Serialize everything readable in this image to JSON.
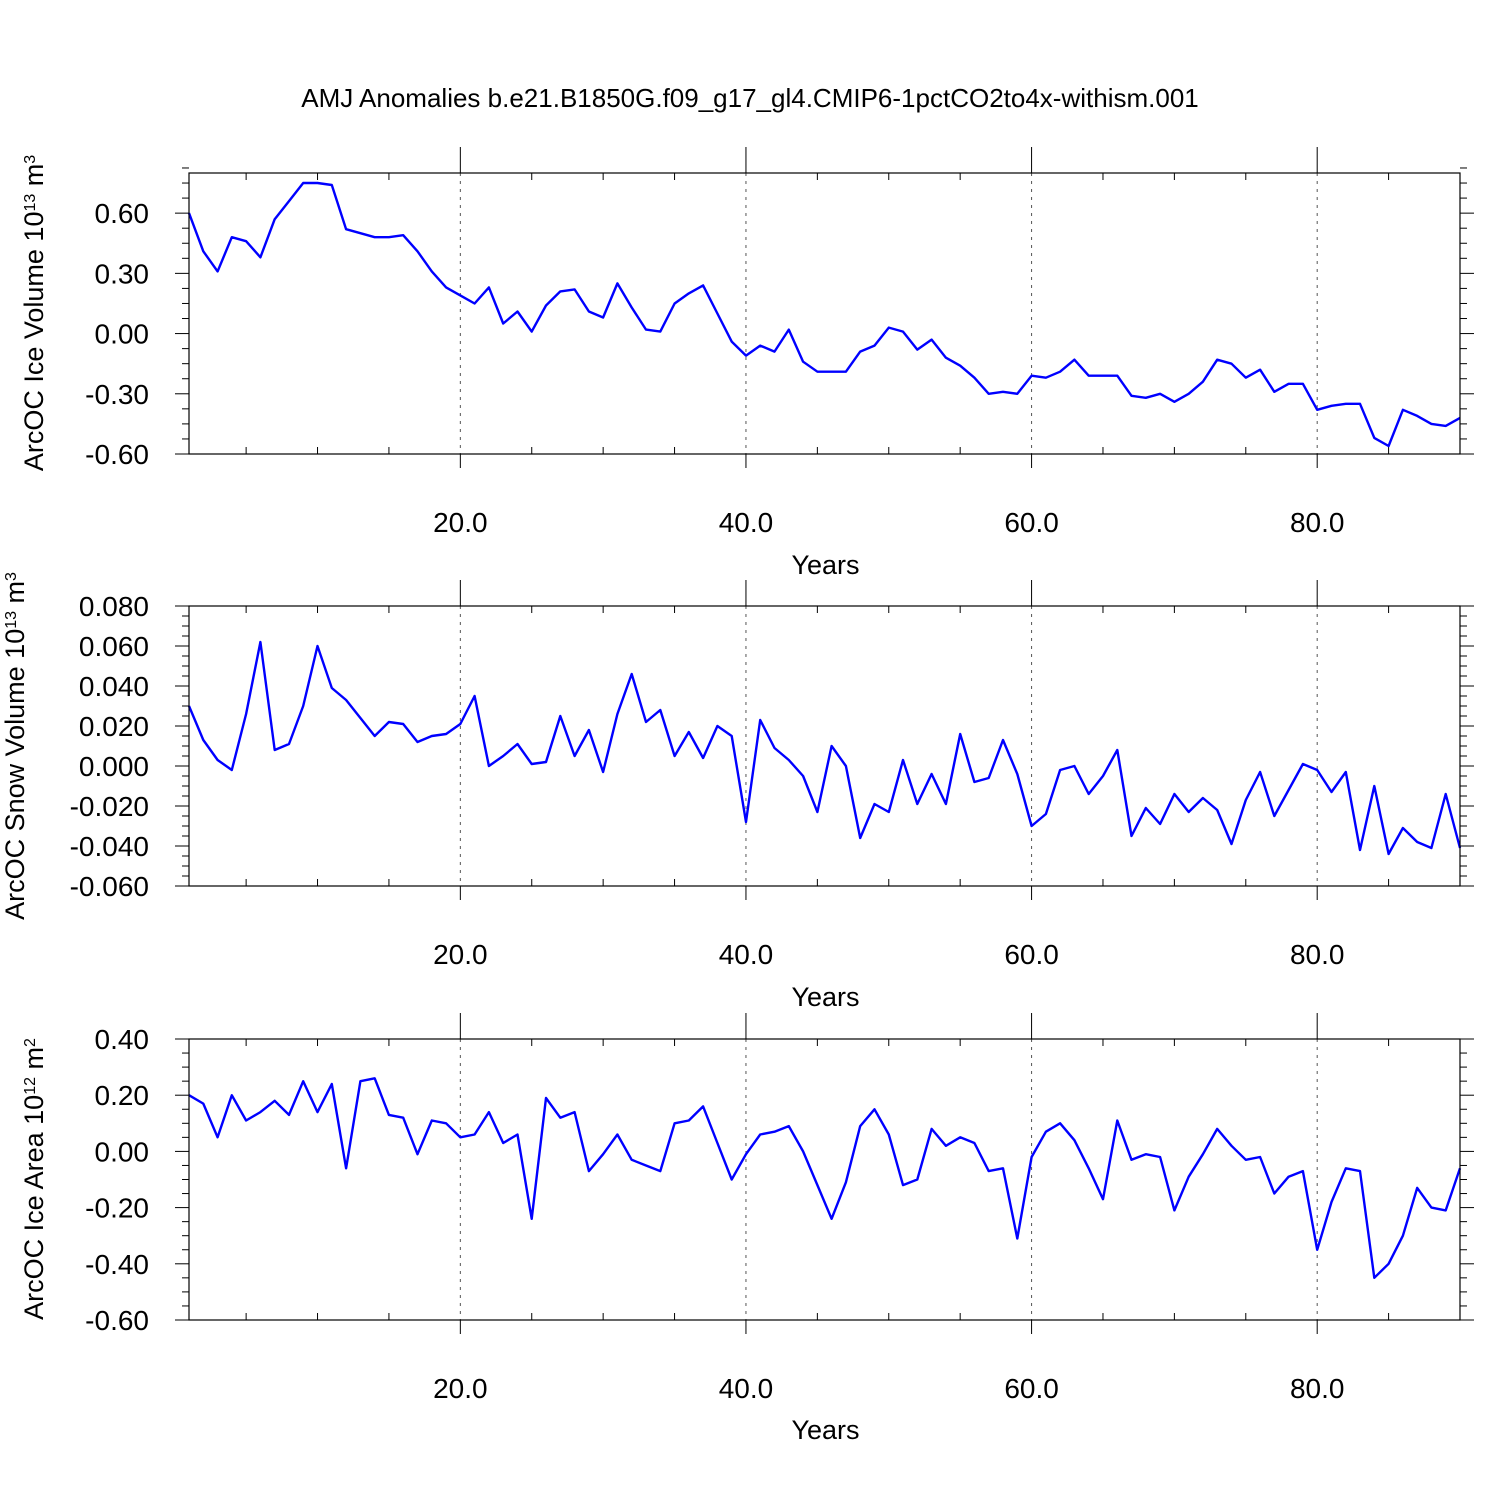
{
  "title": "AMJ Anomalies b.e21.B1850G.f09_g17_gl4.CMIP6-1pctCO2to4x-withism.001",
  "colors": {
    "line": "#0000ff",
    "axis": "#000000",
    "grid": "#555555"
  },
  "chart_data": [
    {
      "type": "line",
      "xlabel": "Years",
      "ylabel": {
        "prefix": "ArcOC Ice Volume 10",
        "exp": "13",
        "unit": " m",
        "unit_exp": "3"
      },
      "xlim": [
        1,
        90
      ],
      "ylim": [
        -0.6,
        0.8
      ],
      "xticks": [
        20,
        40,
        60,
        80
      ],
      "xtick_labels": [
        "20.0",
        "40.0",
        "60.0",
        "80.0"
      ],
      "yticks": [
        -0.6,
        -0.3,
        0.0,
        0.3,
        0.6
      ],
      "ytick_labels": [
        "-0.60",
        "-0.30",
        "0.00",
        "0.30",
        "0.60"
      ],
      "yminor_step": 0.075,
      "grid": "vertical dashed at major x ticks",
      "x": [
        1,
        2,
        3,
        4,
        5,
        6,
        7,
        8,
        9,
        10,
        11,
        12,
        13,
        14,
        15,
        16,
        17,
        18,
        19,
        20,
        21,
        22,
        23,
        24,
        25,
        26,
        27,
        28,
        29,
        30,
        31,
        32,
        33,
        34,
        35,
        36,
        37,
        38,
        39,
        40,
        41,
        42,
        43,
        44,
        45,
        46,
        47,
        48,
        49,
        50,
        51,
        52,
        53,
        54,
        55,
        56,
        57,
        58,
        59,
        60,
        61,
        62,
        63,
        64,
        65,
        66,
        67,
        68,
        69,
        70,
        71,
        72,
        73,
        74,
        75,
        76,
        77,
        78,
        79,
        80,
        81,
        82,
        83,
        84,
        85,
        86,
        87,
        88,
        89,
        90
      ],
      "values": [
        0.6,
        0.41,
        0.31,
        0.48,
        0.46,
        0.38,
        0.57,
        0.66,
        0.75,
        0.75,
        0.74,
        0.52,
        0.5,
        0.48,
        0.48,
        0.49,
        0.41,
        0.31,
        0.23,
        0.19,
        0.15,
        0.23,
        0.05,
        0.11,
        0.01,
        0.14,
        0.21,
        0.22,
        0.11,
        0.08,
        0.25,
        0.13,
        0.02,
        0.01,
        0.15,
        0.2,
        0.24,
        0.1,
        -0.04,
        -0.11,
        -0.06,
        -0.09,
        0.02,
        -0.14,
        -0.19,
        -0.19,
        -0.19,
        -0.09,
        -0.06,
        0.03,
        0.01,
        -0.08,
        -0.03,
        -0.12,
        -0.16,
        -0.22,
        -0.3,
        -0.29,
        -0.3,
        -0.21,
        -0.22,
        -0.19,
        -0.13,
        -0.21,
        -0.21,
        -0.21,
        -0.31,
        -0.32,
        -0.3,
        -0.34,
        -0.3,
        -0.24,
        -0.13,
        -0.15,
        -0.22,
        -0.18,
        -0.29,
        -0.25,
        -0.25,
        -0.38,
        -0.36,
        -0.35,
        -0.35,
        -0.52,
        -0.56,
        -0.38,
        -0.41,
        -0.45,
        -0.46,
        -0.42
      ]
    },
    {
      "type": "line",
      "xlabel": "Years",
      "ylabel": {
        "prefix": "ArcOC Snow Volume 10",
        "exp": "13",
        "unit": " m",
        "unit_exp": "3"
      },
      "xlim": [
        1,
        90
      ],
      "ylim": [
        -0.06,
        0.08
      ],
      "xticks": [
        20,
        40,
        60,
        80
      ],
      "xtick_labels": [
        "20.0",
        "40.0",
        "60.0",
        "80.0"
      ],
      "yticks": [
        -0.06,
        -0.04,
        -0.02,
        0.0,
        0.02,
        0.04,
        0.06,
        0.08
      ],
      "ytick_labels": [
        "-0.060",
        "-0.040",
        "-0.020",
        "0.000",
        "0.020",
        "0.040",
        "0.060",
        "0.080"
      ],
      "yminor_step": 0.005,
      "grid": "vertical dashed at major x ticks",
      "x": [
        1,
        2,
        3,
        4,
        5,
        6,
        7,
        8,
        9,
        10,
        11,
        12,
        13,
        14,
        15,
        16,
        17,
        18,
        19,
        20,
        21,
        22,
        23,
        24,
        25,
        26,
        27,
        28,
        29,
        30,
        31,
        32,
        33,
        34,
        35,
        36,
        37,
        38,
        39,
        40,
        41,
        42,
        43,
        44,
        45,
        46,
        47,
        48,
        49,
        50,
        51,
        52,
        53,
        54,
        55,
        56,
        57,
        58,
        59,
        60,
        61,
        62,
        63,
        64,
        65,
        66,
        67,
        68,
        69,
        70,
        71,
        72,
        73,
        74,
        75,
        76,
        77,
        78,
        79,
        80,
        81,
        82,
        83,
        84,
        85,
        86,
        87,
        88,
        89,
        90
      ],
      "values": [
        0.03,
        0.013,
        0.003,
        -0.002,
        0.026,
        0.062,
        0.008,
        0.011,
        0.03,
        0.06,
        0.039,
        0.033,
        0.024,
        0.015,
        0.022,
        0.021,
        0.012,
        0.015,
        0.016,
        0.021,
        0.035,
        0.0,
        0.005,
        0.011,
        0.001,
        0.002,
        0.025,
        0.005,
        0.018,
        -0.003,
        0.026,
        0.046,
        0.022,
        0.028,
        0.005,
        0.017,
        0.004,
        0.02,
        0.015,
        -0.028,
        0.023,
        0.009,
        0.003,
        -0.005,
        -0.023,
        0.01,
        0.0,
        -0.036,
        -0.019,
        -0.023,
        0.003,
        -0.019,
        -0.004,
        -0.019,
        0.016,
        -0.008,
        -0.006,
        0.013,
        -0.004,
        -0.03,
        -0.024,
        -0.002,
        0.0,
        -0.014,
        -0.005,
        0.008,
        -0.035,
        -0.021,
        -0.029,
        -0.014,
        -0.023,
        -0.016,
        -0.022,
        -0.039,
        -0.017,
        -0.003,
        -0.025,
        -0.012,
        0.001,
        -0.002,
        -0.013,
        -0.003,
        -0.042,
        -0.01,
        -0.044,
        -0.031,
        -0.038,
        -0.041,
        -0.014,
        -0.041
      ]
    },
    {
      "type": "line",
      "xlabel": "Years",
      "ylabel": {
        "prefix": "ArcOC Ice Area 10",
        "exp": "12",
        "unit": " m",
        "unit_exp": "2"
      },
      "xlim": [
        1,
        90
      ],
      "ylim": [
        -0.6,
        0.4
      ],
      "xticks": [
        20,
        40,
        60,
        80
      ],
      "xtick_labels": [
        "20.0",
        "40.0",
        "60.0",
        "80.0"
      ],
      "yticks": [
        -0.6,
        -0.4,
        -0.2,
        0.0,
        0.2,
        0.4
      ],
      "ytick_labels": [
        "-0.60",
        "-0.40",
        "-0.20",
        "0.00",
        "0.20",
        "0.40"
      ],
      "yminor_step": 0.05,
      "grid": "vertical dashed at major x ticks",
      "x": [
        1,
        2,
        3,
        4,
        5,
        6,
        7,
        8,
        9,
        10,
        11,
        12,
        13,
        14,
        15,
        16,
        17,
        18,
        19,
        20,
        21,
        22,
        23,
        24,
        25,
        26,
        27,
        28,
        29,
        30,
        31,
        32,
        33,
        34,
        35,
        36,
        37,
        38,
        39,
        40,
        41,
        42,
        43,
        44,
        45,
        46,
        47,
        48,
        49,
        50,
        51,
        52,
        53,
        54,
        55,
        56,
        57,
        58,
        59,
        60,
        61,
        62,
        63,
        64,
        65,
        66,
        67,
        68,
        69,
        70,
        71,
        72,
        73,
        74,
        75,
        76,
        77,
        78,
        79,
        80,
        81,
        82,
        83,
        84,
        85,
        86,
        87,
        88,
        89,
        90
      ],
      "values": [
        0.2,
        0.17,
        0.05,
        0.2,
        0.11,
        0.14,
        0.18,
        0.13,
        0.25,
        0.14,
        0.24,
        -0.06,
        0.25,
        0.26,
        0.13,
        0.12,
        -0.01,
        0.11,
        0.1,
        0.05,
        0.06,
        0.14,
        0.03,
        0.06,
        -0.24,
        0.19,
        0.12,
        0.14,
        -0.07,
        -0.01,
        0.06,
        -0.03,
        -0.05,
        -0.07,
        0.1,
        0.11,
        0.16,
        0.03,
        -0.1,
        -0.01,
        0.06,
        0.07,
        0.09,
        0.0,
        -0.12,
        -0.24,
        -0.11,
        0.09,
        0.15,
        0.06,
        -0.12,
        -0.1,
        0.08,
        0.02,
        0.05,
        0.03,
        -0.07,
        -0.06,
        -0.31,
        -0.02,
        0.07,
        0.1,
        0.04,
        -0.06,
        -0.17,
        0.11,
        -0.03,
        -0.01,
        -0.02,
        -0.21,
        -0.09,
        -0.01,
        0.08,
        0.02,
        -0.03,
        -0.02,
        -0.15,
        -0.09,
        -0.07,
        -0.35,
        -0.18,
        -0.06,
        -0.07,
        -0.45,
        -0.4,
        -0.3,
        -0.13,
        -0.2,
        -0.21,
        -0.06
      ]
    }
  ]
}
